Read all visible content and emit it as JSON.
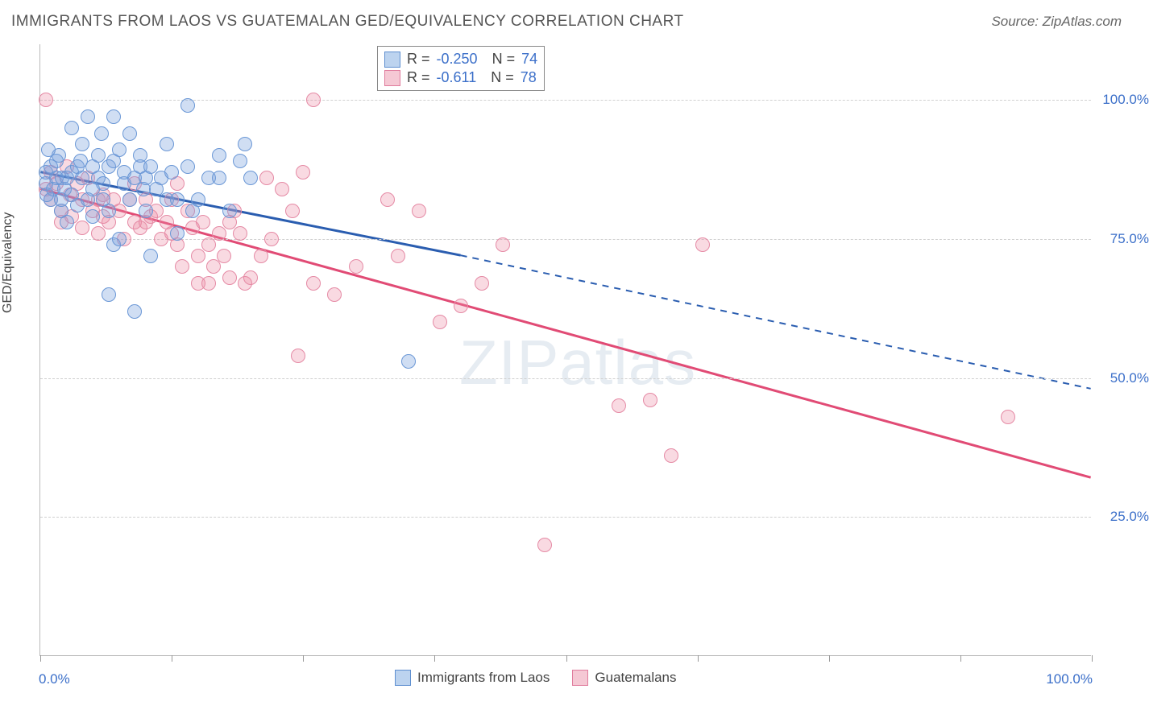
{
  "title": "IMMIGRANTS FROM LAOS VS GUATEMALAN GED/EQUIVALENCY CORRELATION CHART",
  "source": "Source: ZipAtlas.com",
  "watermark": "ZIPatlas",
  "chart": {
    "type": "scatter",
    "ylabel": "GED/Equivalency",
    "xaxis": {
      "min": 0,
      "max": 100,
      "ticks_pct": [
        0,
        12.5,
        25,
        37.5,
        50,
        62.5,
        75,
        87.5,
        100
      ],
      "label_left": "0.0%",
      "label_right": "100.0%"
    },
    "yaxis": {
      "min": 0,
      "max": 110,
      "gridlines_y": [
        25,
        50,
        75,
        100
      ],
      "labels": [
        "25.0%",
        "50.0%",
        "75.0%",
        "100.0%"
      ]
    },
    "background_color": "#ffffff",
    "grid_color": "#d0d0d0",
    "series": [
      {
        "name": "Immigrants from Laos",
        "color_fill": "rgba(120,160,220,0.35)",
        "color_stroke": "#6a97d6",
        "swatch_fill": "#bcd3ef",
        "swatch_stroke": "#5f8fd0",
        "R": "-0.250",
        "N": "74",
        "marker_radius": 9,
        "regression": {
          "x1": 0,
          "y1": 87,
          "x2": 40,
          "y2": 72,
          "dash_x2": 100,
          "dash_y2": 48,
          "color": "#2a5db0",
          "width": 3
        },
        "points": [
          [
            0.5,
            87
          ],
          [
            0.5,
            85
          ],
          [
            1,
            82
          ],
          [
            1,
            88
          ],
          [
            1.2,
            84
          ],
          [
            1.5,
            86
          ],
          [
            1.5,
            89
          ],
          [
            1.8,
            90
          ],
          [
            2,
            80
          ],
          [
            2,
            82
          ],
          [
            2.1,
            86
          ],
          [
            2.3,
            84
          ],
          [
            0.8,
            91
          ],
          [
            0.6,
            83
          ],
          [
            2.5,
            78
          ],
          [
            2.5,
            86
          ],
          [
            3,
            95
          ],
          [
            3,
            87
          ],
          [
            3,
            83
          ],
          [
            3.5,
            88
          ],
          [
            3.5,
            81
          ],
          [
            3.8,
            89
          ],
          [
            4,
            92
          ],
          [
            4,
            86
          ],
          [
            4.5,
            82
          ],
          [
            4.5,
            97
          ],
          [
            5,
            84
          ],
          [
            5,
            88
          ],
          [
            5,
            79
          ],
          [
            5.5,
            90
          ],
          [
            5.5,
            86
          ],
          [
            5.8,
            94
          ],
          [
            6,
            82
          ],
          [
            6,
            85
          ],
          [
            6.5,
            88
          ],
          [
            6.5,
            80
          ],
          [
            6.5,
            65
          ],
          [
            7,
            74
          ],
          [
            7,
            97
          ],
          [
            7,
            89
          ],
          [
            7.5,
            91
          ],
          [
            7.5,
            75
          ],
          [
            8,
            87
          ],
          [
            8,
            85
          ],
          [
            8.5,
            94
          ],
          [
            8.5,
            82
          ],
          [
            9,
            86
          ],
          [
            9,
            62
          ],
          [
            9.5,
            88
          ],
          [
            9.5,
            90
          ],
          [
            9.8,
            84
          ],
          [
            10,
            86
          ],
          [
            10,
            80
          ],
          [
            10.5,
            72
          ],
          [
            10.5,
            88
          ],
          [
            11,
            84
          ],
          [
            11.5,
            86
          ],
          [
            12,
            92
          ],
          [
            12,
            82
          ],
          [
            12.5,
            87
          ],
          [
            13,
            76
          ],
          [
            13,
            82
          ],
          [
            14,
            99
          ],
          [
            14,
            88
          ],
          [
            14.5,
            80
          ],
          [
            15,
            82
          ],
          [
            16,
            86
          ],
          [
            17,
            90
          ],
          [
            17,
            86
          ],
          [
            18,
            80
          ],
          [
            19,
            89
          ],
          [
            19.5,
            92
          ],
          [
            20,
            86
          ],
          [
            35,
            53
          ]
        ]
      },
      {
        "name": "Guatemalans",
        "color_fill": "rgba(235,140,165,0.32)",
        "color_stroke": "#e58aa5",
        "swatch_fill": "#f5c8d4",
        "swatch_stroke": "#e07c9d",
        "R": "-0.611",
        "N": "78",
        "marker_radius": 9,
        "regression": {
          "x1": 0,
          "y1": 84,
          "x2": 100,
          "y2": 32,
          "color": "#e14b75",
          "width": 3
        },
        "points": [
          [
            0.5,
            84
          ],
          [
            1,
            82
          ],
          [
            1,
            87
          ],
          [
            1.5,
            85
          ],
          [
            2,
            80
          ],
          [
            2,
            78
          ],
          [
            0.5,
            100
          ],
          [
            2.5,
            88
          ],
          [
            2.8,
            83
          ],
          [
            3,
            79
          ],
          [
            3.5,
            85
          ],
          [
            4,
            82
          ],
          [
            4,
            77
          ],
          [
            4.5,
            86
          ],
          [
            5,
            80
          ],
          [
            5.5,
            82
          ],
          [
            5.5,
            76
          ],
          [
            6,
            83
          ],
          [
            6,
            79
          ],
          [
            6.5,
            78
          ],
          [
            7,
            82
          ],
          [
            7.5,
            80
          ],
          [
            8,
            75
          ],
          [
            8.5,
            82
          ],
          [
            9,
            85
          ],
          [
            9,
            78
          ],
          [
            9.5,
            77
          ],
          [
            10,
            78
          ],
          [
            10,
            82
          ],
          [
            10.5,
            79
          ],
          [
            11,
            80
          ],
          [
            11.5,
            75
          ],
          [
            12,
            78
          ],
          [
            12.5,
            76
          ],
          [
            12.5,
            82
          ],
          [
            13,
            74
          ],
          [
            13,
            85
          ],
          [
            13.5,
            70
          ],
          [
            14,
            80
          ],
          [
            14.5,
            77
          ],
          [
            15,
            67
          ],
          [
            15,
            72
          ],
          [
            15.5,
            78
          ],
          [
            16,
            67
          ],
          [
            16,
            74
          ],
          [
            16.5,
            70
          ],
          [
            17,
            76
          ],
          [
            17.5,
            72
          ],
          [
            18,
            68
          ],
          [
            18,
            78
          ],
          [
            18.5,
            80
          ],
          [
            19,
            76
          ],
          [
            19.5,
            67
          ],
          [
            20,
            68
          ],
          [
            21,
            72
          ],
          [
            21.5,
            86
          ],
          [
            22,
            75
          ],
          [
            23,
            84
          ],
          [
            24,
            80
          ],
          [
            24.5,
            54
          ],
          [
            25,
            87
          ],
          [
            26,
            100
          ],
          [
            26,
            67
          ],
          [
            28,
            65
          ],
          [
            30,
            70
          ],
          [
            33,
            82
          ],
          [
            34,
            72
          ],
          [
            36,
            80
          ],
          [
            38,
            60
          ],
          [
            40,
            63
          ],
          [
            42,
            67
          ],
          [
            44,
            74
          ],
          [
            48,
            20
          ],
          [
            55,
            45
          ],
          [
            58,
            46
          ],
          [
            60,
            36
          ],
          [
            63,
            74
          ],
          [
            92,
            43
          ]
        ]
      }
    ],
    "legend_bottom": [
      {
        "label": "Immigrants from Laos",
        "fill": "#bcd3ef",
        "stroke": "#5f8fd0"
      },
      {
        "label": "Guatemalans",
        "fill": "#f5c8d4",
        "stroke": "#e07c9d"
      }
    ]
  }
}
